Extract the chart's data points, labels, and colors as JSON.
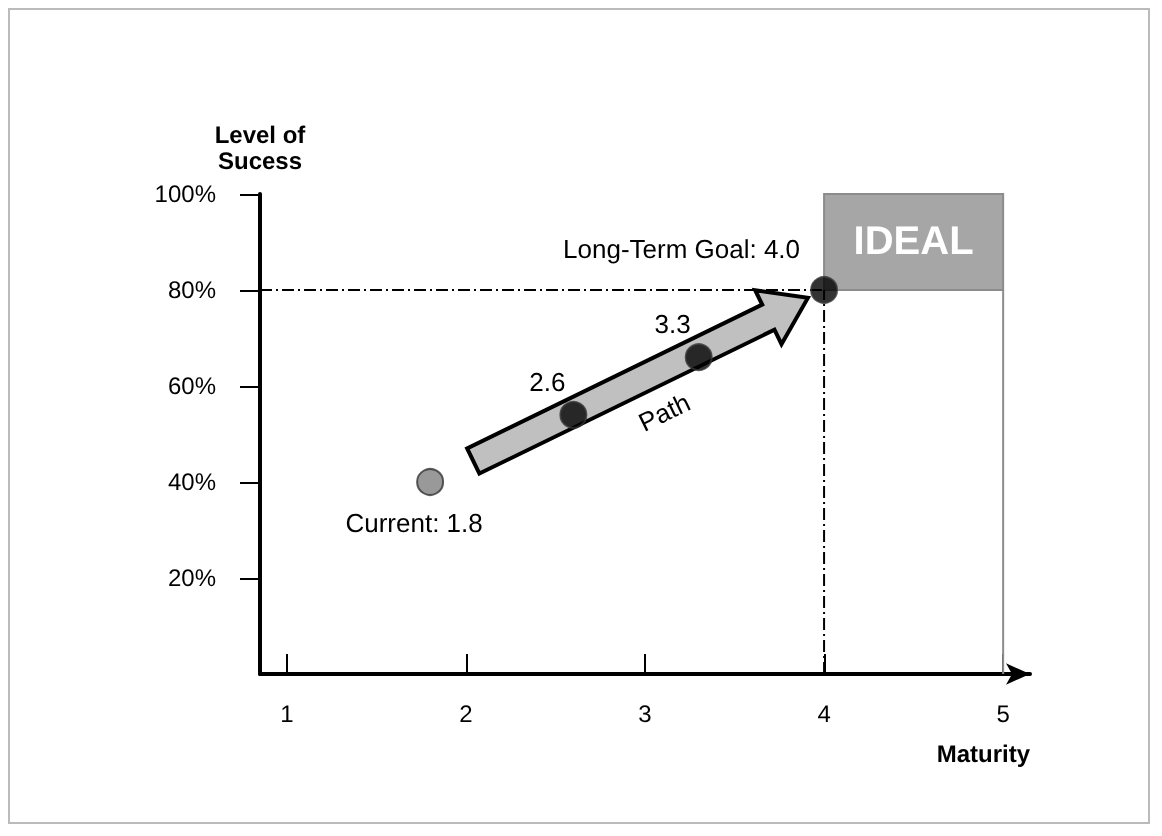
{
  "chart_data": {
    "type": "scatter",
    "xlabel": "Maturity",
    "ylabel": "Level of\nSucess",
    "x": [
      1.8,
      2.6,
      3.3,
      4.0
    ],
    "series": [
      {
        "values": [
          40,
          54,
          66,
          80
        ],
        "colors": [
          "#808080",
          "#000000",
          "#000000",
          "#000000"
        ]
      }
    ],
    "xlim": [
      0.85,
      5.15
    ],
    "xticks": [
      1,
      2,
      3,
      4,
      5
    ],
    "ylim": [
      0,
      100
    ],
    "yticks": [
      {
        "value": 20,
        "label": "20%"
      },
      {
        "value": 40,
        "label": "40%"
      },
      {
        "value": 60,
        "label": "60%"
      },
      {
        "value": 80,
        "label": "80%"
      },
      {
        "value": 100,
        "label": "100%"
      }
    ],
    "ref_lines": [
      {
        "axis": "y",
        "value": 80,
        "color": "#000000",
        "line_style": "dashed"
      },
      {
        "axis": "x",
        "value": 4,
        "color": "#000000",
        "line_style": "dashed"
      }
    ],
    "annotations": [
      "IDEAL",
      "Path",
      {
        "text": "Current: 1.8",
        "x": 1.8,
        "y": 40
      },
      {
        "text": "2.6",
        "x": 2.6,
        "y": 54
      },
      {
        "text": "3.3",
        "x": 3.3,
        "y": 66
      },
      {
        "text": "Long-Term Goal: 4.0",
        "x": 4.0,
        "y": 80
      }
    ],
    "grid": false,
    "marker": "circle"
  }
}
